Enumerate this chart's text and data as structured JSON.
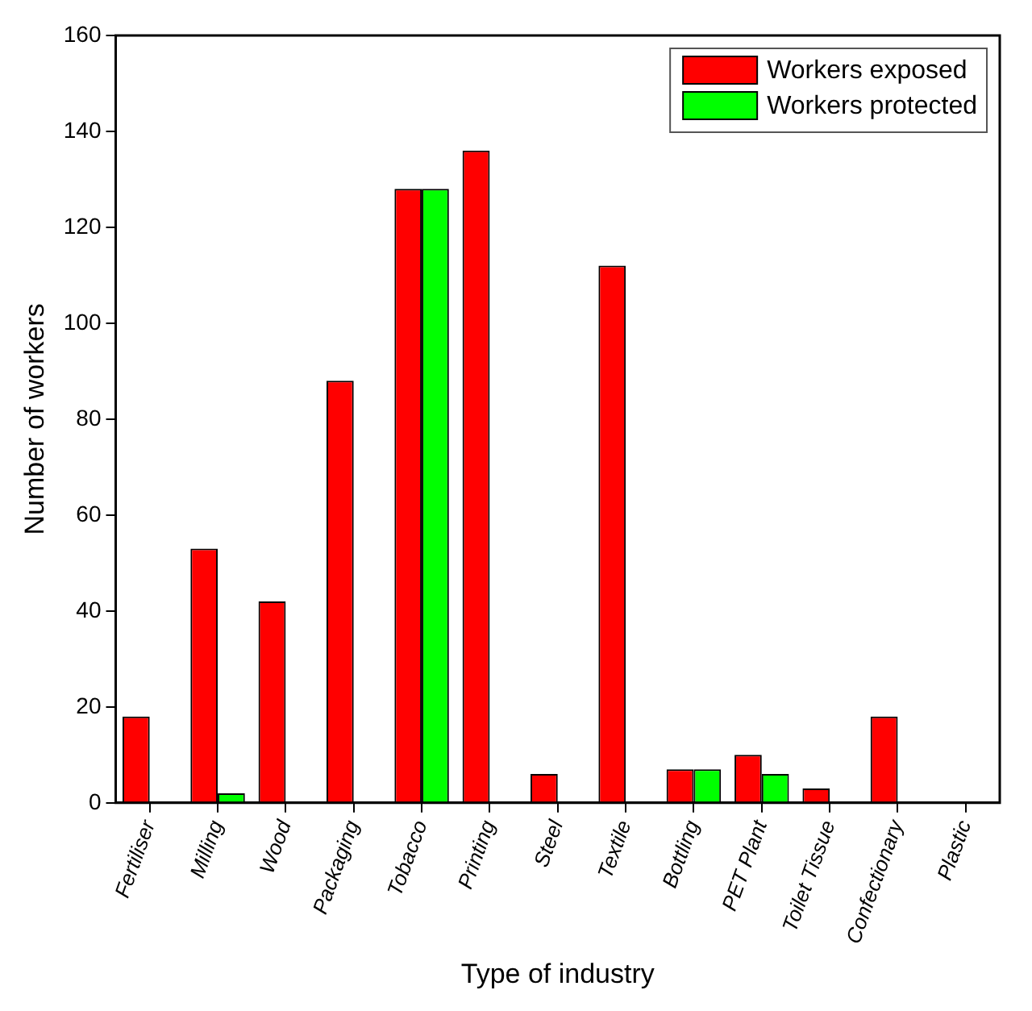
{
  "chart_data": {
    "type": "bar",
    "xlabel": "Type of industry",
    "ylabel": "Number of workers",
    "categories": [
      "Fertiliser",
      "Milling",
      "Wood",
      "Packaging",
      "Tobacco",
      "Printing",
      "Steel",
      "Textile",
      "Bottling",
      "PET Plant",
      "Toilet Tissue",
      "Confectionary",
      "Plastic"
    ],
    "series": [
      {
        "name": "Workers exposed",
        "color": "#ff0000",
        "values": [
          18,
          53,
          42,
          88,
          128,
          136,
          6,
          112,
          7,
          10,
          3,
          18,
          0
        ]
      },
      {
        "name": "Workers protected",
        "color": "#00ff00",
        "values": [
          0,
          2,
          0,
          0,
          128,
          0,
          0,
          0,
          7,
          6,
          0,
          0,
          0
        ]
      }
    ],
    "ylim": [
      0,
      160
    ],
    "yticks": [
      0,
      20,
      40,
      60,
      80,
      100,
      120,
      140,
      160
    ],
    "grid": false,
    "legend": "top right"
  }
}
